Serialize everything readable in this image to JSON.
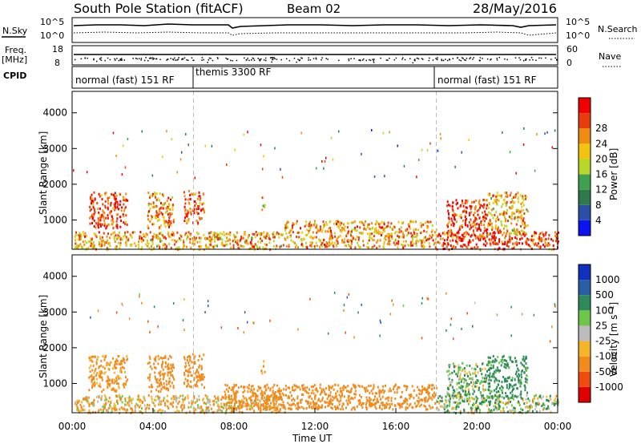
{
  "header": {
    "station": "South Pole Station (fitACF)",
    "beam": "Beam 02",
    "date": "28/May/2016"
  },
  "top_panels": {
    "nsky_label": "N.Sky",
    "nsearch_label": "N.Search",
    "freq_label_line1": "Freq.",
    "freq_label_line2": "[MHz]",
    "nave_label": "Nave",
    "cpid_label": "CPID",
    "left_ticks_n": [
      "10^5",
      "10^0"
    ],
    "right_ticks_n": [
      "10^5",
      "10^0"
    ],
    "left_ticks_freq": [
      "18",
      "8"
    ],
    "right_ticks_nave": [
      "60",
      "0"
    ],
    "cpid_segments": [
      {
        "label": "normal (fast) 151 RF",
        "start_hour": 0
      },
      {
        "label": "themis 3300 RF",
        "start_hour": 6
      },
      {
        "label": "normal (fast) 151 RF",
        "start_hour": 18
      }
    ]
  },
  "axes": {
    "xlabel": "Time UT",
    "ylabel": "Slant Range [km]",
    "x_ticks": [
      "00:00",
      "04:00",
      "08:00",
      "12:00",
      "16:00",
      "20:00",
      "00:00"
    ],
    "y_ticks": [
      "1000",
      "2000",
      "3000",
      "4000"
    ],
    "power_label": "Power [dB]",
    "velocity_label": "Velocity [m s⁻¹]",
    "power_ticks": [
      "4",
      "8",
      "12",
      "16",
      "20",
      "24",
      "28"
    ],
    "velocity_ticks": [
      "1000",
      "500",
      "100",
      "25",
      "-25",
      "-100",
      "-500",
      "-1000"
    ]
  },
  "chart_data": [
    {
      "type": "heatmap",
      "title": "Power",
      "x_range_hours": [
        0,
        24
      ],
      "y_range_km": [
        180,
        4600
      ],
      "color_scale": "Power [dB]",
      "color_range": [
        0,
        30
      ],
      "regions": [
        {
          "t0": 0.1,
          "t1": 10.5,
          "r0": 200,
          "r1": 700,
          "value": 20
        },
        {
          "t0": 10.5,
          "t1": 18,
          "r0": 250,
          "r1": 1000,
          "value": 21
        },
        {
          "t0": 18,
          "t1": 24,
          "r0": 200,
          "r1": 700,
          "value": 26
        },
        {
          "t0": 0.8,
          "t1": 2.7,
          "r0": 800,
          "r1": 1800,
          "value": 25
        },
        {
          "t0": 3.7,
          "t1": 5,
          "r0": 800,
          "r1": 1800,
          "value": 22
        },
        {
          "t0": 5.5,
          "t1": 6.5,
          "r0": 900,
          "r1": 1850,
          "value": 25
        },
        {
          "t0": 9.3,
          "t1": 9.5,
          "r0": 1300,
          "r1": 1700,
          "value": 20
        },
        {
          "t0": 18.5,
          "t1": 20.5,
          "r0": 500,
          "r1": 1600,
          "value": 26
        },
        {
          "t0": 20.5,
          "t1": 22.5,
          "r0": 600,
          "r1": 1800,
          "value": 20
        }
      ]
    },
    {
      "type": "heatmap",
      "title": "Velocity",
      "x_range_hours": [
        0,
        24
      ],
      "y_range_km": [
        180,
        4600
      ],
      "color_scale": "Velocity [m s-1]",
      "color_range": [
        -1000,
        1000
      ],
      "regions": [
        {
          "t0": 0.1,
          "t1": 10.5,
          "r0": 200,
          "r1": 700,
          "value": -100
        },
        {
          "t0": 7.5,
          "t1": 18,
          "r0": 300,
          "r1": 1000,
          "value": -300
        },
        {
          "t0": 18,
          "t1": 24,
          "r0": 200,
          "r1": 700,
          "value": 60
        },
        {
          "t0": 0.8,
          "t1": 2.7,
          "r0": 800,
          "r1": 1800,
          "value": -200
        },
        {
          "t0": 3.7,
          "t1": 5,
          "r0": 800,
          "r1": 1800,
          "value": -300
        },
        {
          "t0": 5.5,
          "t1": 6.5,
          "r0": 900,
          "r1": 1850,
          "value": -300
        },
        {
          "t0": 9.3,
          "t1": 9.5,
          "r0": 1300,
          "r1": 1700,
          "value": -150
        },
        {
          "t0": 18.5,
          "t1": 20.5,
          "r0": 500,
          "r1": 1600,
          "value": 80
        },
        {
          "t0": 20.5,
          "t1": 22.5,
          "r0": 600,
          "r1": 1800,
          "value": 200
        }
      ]
    }
  ],
  "colors": {
    "power_scale": [
      "#0a14f0",
      "#2a4fa8",
      "#2e7a4a",
      "#3fa14f",
      "#b7d62a",
      "#f2c410",
      "#f08a10",
      "#e83c0c",
      "#f00000"
    ],
    "velocity_scale": [
      "#e00000",
      "#f04c10",
      "#f28a1c",
      "#f6b42a",
      "#bcbcbc",
      "#6ec64a",
      "#2f8a5a",
      "#2a5fa6",
      "#1030c0"
    ]
  }
}
